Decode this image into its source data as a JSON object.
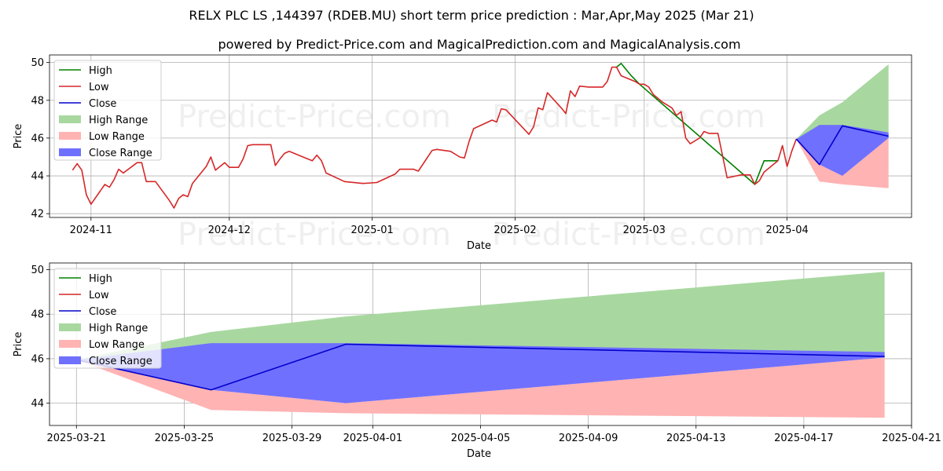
{
  "title": "RELX PLC LS ,144397 (RDEB.MU) short term price prediction : Mar,Apr,May 2025 (Mar 21)",
  "subtitle": "powered by Predict-Price.com and MagicalPrediction.com and MagicalAnalysis.com",
  "watermark": "Predict-Price.com",
  "colors": {
    "high": "#008000",
    "low": "#d62728",
    "close": "#0000cc",
    "high_range": "#a8d8a0",
    "low_range": "#ffb3b3",
    "close_range": "#7070ff"
  },
  "chart_data": [
    {
      "type": "line",
      "xlabel": "Date",
      "ylabel": "Price",
      "xlim": [
        "2024-10-23",
        "2025-04-28"
      ],
      "ylim": [
        41.8,
        50.4
      ],
      "grid": true,
      "legend_position": "upper-left",
      "x_ticks": [
        "2024-11",
        "2024-12",
        "2025-01",
        "2025-02",
        "2025-03",
        "2025-04"
      ],
      "x_tick_dates": [
        "2024-11-01",
        "2024-12-01",
        "2025-01-01",
        "2025-02-01",
        "2025-03-01",
        "2025-04-01"
      ],
      "y_ticks": [
        42,
        44,
        46,
        48,
        50
      ],
      "legend": [
        "High",
        "Low",
        "Close",
        "High Range",
        "Low Range",
        "Close Range"
      ],
      "low_series": [
        [
          "2024-10-28",
          44.3
        ],
        [
          "2024-10-29",
          44.65
        ],
        [
          "2024-10-30",
          44.3
        ],
        [
          "2024-10-31",
          43.0
        ],
        [
          "2024-11-01",
          42.5
        ],
        [
          "2024-11-04",
          43.55
        ],
        [
          "2024-11-05",
          43.4
        ],
        [
          "2024-11-06",
          43.8
        ],
        [
          "2024-11-07",
          44.35
        ],
        [
          "2024-11-08",
          44.15
        ],
        [
          "2024-11-11",
          44.7
        ],
        [
          "2024-11-12",
          44.7
        ],
        [
          "2024-11-13",
          43.7
        ],
        [
          "2024-11-15",
          43.7
        ],
        [
          "2024-11-18",
          42.7
        ],
        [
          "2024-11-19",
          42.3
        ],
        [
          "2024-11-20",
          42.8
        ],
        [
          "2024-11-21",
          43.0
        ],
        [
          "2024-11-22",
          42.9
        ],
        [
          "2024-11-23",
          43.6
        ],
        [
          "2024-11-26",
          44.5
        ],
        [
          "2024-11-27",
          45.0
        ],
        [
          "2024-11-28",
          44.3
        ],
        [
          "2024-11-29",
          44.5
        ],
        [
          "2024-11-30",
          44.7
        ],
        [
          "2024-12-01",
          44.45
        ],
        [
          "2024-12-03",
          44.45
        ],
        [
          "2024-12-04",
          44.9
        ],
        [
          "2024-12-05",
          45.6
        ],
        [
          "2024-12-06",
          45.65
        ],
        [
          "2024-12-10",
          45.65
        ],
        [
          "2024-12-11",
          44.55
        ],
        [
          "2024-12-12",
          44.9
        ],
        [
          "2024-12-13",
          45.2
        ],
        [
          "2024-12-14",
          45.3
        ],
        [
          "2024-12-18",
          44.9
        ],
        [
          "2024-12-19",
          44.8
        ],
        [
          "2024-12-20",
          45.1
        ],
        [
          "2024-12-21",
          44.8
        ],
        [
          "2024-12-22",
          44.15
        ],
        [
          "2024-12-26",
          43.7
        ],
        [
          "2024-12-30",
          43.6
        ],
        [
          "2025-01-02",
          43.65
        ],
        [
          "2025-01-06",
          44.1
        ],
        [
          "2025-01-07",
          44.35
        ],
        [
          "2025-01-10",
          44.35
        ],
        [
          "2025-01-11",
          44.25
        ],
        [
          "2025-01-14",
          45.35
        ],
        [
          "2025-01-15",
          45.4
        ],
        [
          "2025-01-18",
          45.3
        ],
        [
          "2025-01-20",
          45.0
        ],
        [
          "2025-01-21",
          44.95
        ],
        [
          "2025-01-22",
          45.8
        ],
        [
          "2025-01-23",
          46.5
        ],
        [
          "2025-01-27",
          46.95
        ],
        [
          "2025-01-28",
          46.85
        ],
        [
          "2025-01-29",
          47.55
        ],
        [
          "2025-01-30",
          47.5
        ],
        [
          "2025-02-04",
          46.2
        ],
        [
          "2025-02-05",
          46.6
        ],
        [
          "2025-02-06",
          47.6
        ],
        [
          "2025-02-07",
          47.5
        ],
        [
          "2025-02-08",
          48.4
        ],
        [
          "2025-02-11",
          47.6
        ],
        [
          "2025-02-12",
          47.3
        ],
        [
          "2025-02-13",
          48.5
        ],
        [
          "2025-02-14",
          48.2
        ],
        [
          "2025-02-15",
          48.75
        ],
        [
          "2025-02-17",
          48.7
        ],
        [
          "2025-02-20",
          48.7
        ],
        [
          "2025-02-21",
          49.0
        ],
        [
          "2025-02-22",
          49.75
        ],
        [
          "2025-02-23",
          49.75
        ],
        [
          "2025-02-24",
          49.3
        ],
        [
          "2025-02-27",
          49.0
        ],
        [
          "2025-02-28",
          48.85
        ],
        [
          "2025-03-01",
          48.85
        ],
        [
          "2025-03-02",
          48.7
        ],
        [
          "2025-03-03",
          48.3
        ],
        [
          "2025-03-05",
          47.9
        ],
        [
          "2025-03-07",
          47.6
        ],
        [
          "2025-03-08",
          47.2
        ],
        [
          "2025-03-09",
          47.4
        ],
        [
          "2025-03-10",
          46.0
        ],
        [
          "2025-03-11",
          45.7
        ],
        [
          "2025-03-13",
          46.0
        ],
        [
          "2025-03-14",
          46.35
        ],
        [
          "2025-03-15",
          46.25
        ],
        [
          "2025-03-17",
          46.25
        ],
        [
          "2025-03-19",
          43.9
        ],
        [
          "2025-03-22",
          44.05
        ],
        [
          "2025-03-24",
          44.05
        ],
        [
          "2025-03-25",
          43.55
        ],
        [
          "2025-03-26",
          43.75
        ],
        [
          "2025-03-27",
          44.2
        ],
        [
          "2025-03-30",
          44.8
        ],
        [
          "2025-03-31",
          45.6
        ],
        [
          "2025-04-01",
          44.5
        ],
        [
          "2025-04-02",
          45.3
        ],
        [
          "2025-04-03",
          45.95
        ]
      ],
      "high_series": [
        [
          "2025-02-23",
          49.75
        ],
        [
          "2025-02-24",
          49.95
        ],
        [
          "2025-02-26",
          49.35
        ],
        [
          "2025-02-28",
          48.85
        ],
        [
          "2025-03-25",
          43.55
        ],
        [
          "2025-03-27",
          44.8
        ],
        [
          "2025-03-30",
          44.8
        ]
      ],
      "high_range": {
        "x": [
          "2025-04-03",
          "2025-04-08",
          "2025-04-13",
          "2025-04-23"
        ],
        "upper": [
          45.95,
          47.2,
          47.9,
          49.9
        ],
        "lower": [
          45.95,
          46.3,
          46.4,
          46.3
        ]
      },
      "low_range": {
        "x": [
          "2025-04-03",
          "2025-04-08",
          "2025-04-13",
          "2025-04-23"
        ],
        "upper": [
          45.95,
          44.6,
          44.0,
          46.0
        ],
        "lower": [
          45.95,
          43.7,
          43.55,
          43.35
        ]
      },
      "close_range": {
        "x": [
          "2025-04-03",
          "2025-04-08",
          "2025-04-13",
          "2025-04-23"
        ],
        "upper": [
          45.95,
          46.7,
          46.7,
          46.3
        ],
        "lower": [
          45.95,
          44.6,
          44.0,
          46.0
        ]
      },
      "close_series": [
        [
          "2025-04-03",
          45.95
        ],
        [
          "2025-04-08",
          44.6
        ],
        [
          "2025-04-13",
          46.65
        ],
        [
          "2025-04-23",
          46.1
        ]
      ]
    },
    {
      "type": "line",
      "xlabel": "Date",
      "ylabel": "Price",
      "xlim": [
        "2025-03-20",
        "2025-04-21"
      ],
      "ylim": [
        43.0,
        50.3
      ],
      "grid": true,
      "legend_position": "upper-left",
      "x_ticks": [
        "2025-03-21",
        "2025-03-25",
        "2025-03-29",
        "2025-04-01",
        "2025-04-05",
        "2025-04-09",
        "2025-04-13",
        "2025-04-17",
        "2025-04-21"
      ],
      "y_ticks": [
        44,
        46,
        48,
        50
      ],
      "legend": [
        "High",
        "Low",
        "Close",
        "High Range",
        "Low Range",
        "Close Range"
      ],
      "high_range": {
        "x": [
          "2025-03-21",
          "2025-03-26",
          "2025-03-31",
          "2025-04-20"
        ],
        "upper": [
          45.95,
          47.2,
          47.9,
          49.9
        ],
        "lower": [
          45.95,
          46.3,
          46.4,
          46.3
        ]
      },
      "low_range": {
        "x": [
          "2025-03-21",
          "2025-03-26",
          "2025-03-31",
          "2025-04-20"
        ],
        "upper": [
          45.95,
          44.6,
          44.0,
          46.05
        ],
        "lower": [
          45.95,
          43.7,
          43.55,
          43.35
        ]
      },
      "close_range": {
        "x": [
          "2025-03-21",
          "2025-03-26",
          "2025-03-31",
          "2025-04-20"
        ],
        "upper": [
          45.95,
          46.7,
          46.7,
          46.3
        ],
        "lower": [
          45.95,
          44.6,
          44.0,
          46.05
        ]
      },
      "close_series": [
        [
          "2025-03-21",
          45.95
        ],
        [
          "2025-03-26",
          44.6
        ],
        [
          "2025-03-31",
          46.65
        ],
        [
          "2025-04-20",
          46.1
        ]
      ]
    }
  ]
}
